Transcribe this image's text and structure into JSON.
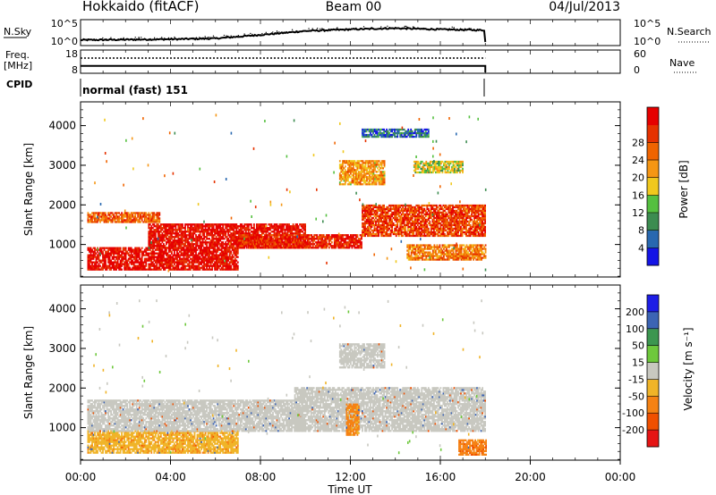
{
  "header": {
    "station": "Hokkaido (fitACF)",
    "beam": "Beam 00",
    "date": "04/Jul/2013"
  },
  "noise_panel": {
    "left_label": "N.Sky",
    "left_ticks": [
      "10^5",
      "10^0"
    ],
    "right_ticks": [
      "10^5",
      "10^0"
    ],
    "right_label": "N.Search",
    "right_legend_style": "dotted"
  },
  "freq_panel": {
    "left_label_line1": "Freq.",
    "left_label_line2": "[MHz]",
    "left_ticks": [
      "18",
      "8"
    ],
    "right_ticks": [
      "60",
      "0"
    ],
    "right_label": "Nave",
    "right_legend_style": "dotted"
  },
  "cpid": {
    "label": "CPID",
    "value": "normal (fast) 151"
  },
  "time_axis": {
    "label": "Time UT",
    "ticks": [
      "00:00",
      "04:00",
      "08:00",
      "12:00",
      "16:00",
      "20:00",
      "00:00"
    ],
    "start_hour": 0,
    "end_hour": 24,
    "data_end_hour": 18
  },
  "range_axis": {
    "label": "Slant Range [km]",
    "ticks": [
      "1000",
      "2000",
      "3000",
      "4000"
    ],
    "tick_values": [
      1000,
      2000,
      3000,
      4000
    ],
    "range_min": 180,
    "range_max": 4600
  },
  "power_colorbar": {
    "label": "Power [dB]",
    "ticks": [
      "4",
      "8",
      "12",
      "16",
      "20",
      "24",
      "28"
    ],
    "colors": [
      "#1414e6",
      "#2868b0",
      "#3c8c50",
      "#55c040",
      "#f0c81e",
      "#f59614",
      "#f06400",
      "#e63200",
      "#e60000"
    ]
  },
  "velocity_colorbar": {
    "label": "Velocity [m s⁻¹]",
    "ticks": [
      "200",
      "100",
      "50",
      "15",
      "-15",
      "-50",
      "-100",
      "-200"
    ],
    "colors": [
      "#1e1ee6",
      "#3c64b4",
      "#3c9650",
      "#6ec83c",
      "#c8c8c0",
      "#f0b428",
      "#f58214",
      "#f05000",
      "#e61414"
    ]
  },
  "chart_data": [
    {
      "type": "heatmap",
      "title": "Power",
      "xlabel": "Time UT",
      "ylabel": "Slant Range [km]",
      "xlim": [
        0,
        24
      ],
      "ylim": [
        180,
        4600
      ],
      "colorbar": {
        "label": "Power [dB]",
        "ticks": [
          4,
          8,
          12,
          16,
          20,
          24,
          28
        ]
      },
      "regions": [
        {
          "t": [
            0.3,
            7.0
          ],
          "r": [
            350,
            900
          ],
          "value": 28
        },
        {
          "t": [
            3.0,
            10.0
          ],
          "r": [
            900,
            1500
          ],
          "value": 28
        },
        {
          "t": [
            7.0,
            12.5
          ],
          "r": [
            900,
            1250
          ],
          "value": 26
        },
        {
          "t": [
            12.5,
            18.0
          ],
          "r": [
            1200,
            2000
          ],
          "value": 24
        },
        {
          "t": [
            0.3,
            3.5
          ],
          "r": [
            1550,
            1800
          ],
          "value": 22
        },
        {
          "t": [
            14.5,
            18.0
          ],
          "r": [
            600,
            1000
          ],
          "value": 20
        },
        {
          "t": [
            11.5,
            13.5
          ],
          "r": [
            2500,
            3100
          ],
          "value": 18
        },
        {
          "t": [
            14.8,
            17.0
          ],
          "r": [
            2800,
            3100
          ],
          "value": 14
        },
        {
          "t": [
            12.5,
            15.5
          ],
          "r": [
            3700,
            3900
          ],
          "value": 6
        }
      ]
    },
    {
      "type": "heatmap",
      "title": "Velocity",
      "xlabel": "Time UT",
      "ylabel": "Slant Range [km]",
      "xlim": [
        0,
        24
      ],
      "ylim": [
        180,
        4600
      ],
      "colorbar": {
        "label": "Velocity [m s-1]",
        "ticks": [
          200,
          100,
          50,
          15,
          -15,
          -50,
          -100,
          -200
        ]
      },
      "regions": [
        {
          "t": [
            0.3,
            7.0
          ],
          "r": [
            350,
            900
          ],
          "value": -40
        },
        {
          "t": [
            0.3,
            10.0
          ],
          "r": [
            900,
            1700
          ],
          "value": 0
        },
        {
          "t": [
            9.5,
            18.0
          ],
          "r": [
            900,
            2000
          ],
          "value": 0
        },
        {
          "t": [
            11.8,
            12.4
          ],
          "r": [
            800,
            1600
          ],
          "value": -60
        },
        {
          "t": [
            16.8,
            18.0
          ],
          "r": [
            300,
            700
          ],
          "value": -90
        },
        {
          "t": [
            11.5,
            13.5
          ],
          "r": [
            2500,
            3100
          ],
          "value": 0
        }
      ]
    },
    {
      "type": "line",
      "title": "N.Sky / N.Search",
      "x": [
        0.0,
        2.0,
        4.0,
        6.0,
        8.0,
        10.0,
        12.0,
        14.0,
        16.0,
        18.0
      ],
      "y_log10": [
        0.5,
        0.6,
        0.7,
        0.9,
        1.8,
        2.8,
        3.2,
        3.5,
        3.2,
        3.0
      ]
    },
    {
      "type": "line",
      "title": "Freq / Nave",
      "x": [
        0.0,
        18.0
      ],
      "freq_mhz": [
        11.0,
        11.0
      ],
      "nave": [
        40,
        40
      ]
    }
  ]
}
